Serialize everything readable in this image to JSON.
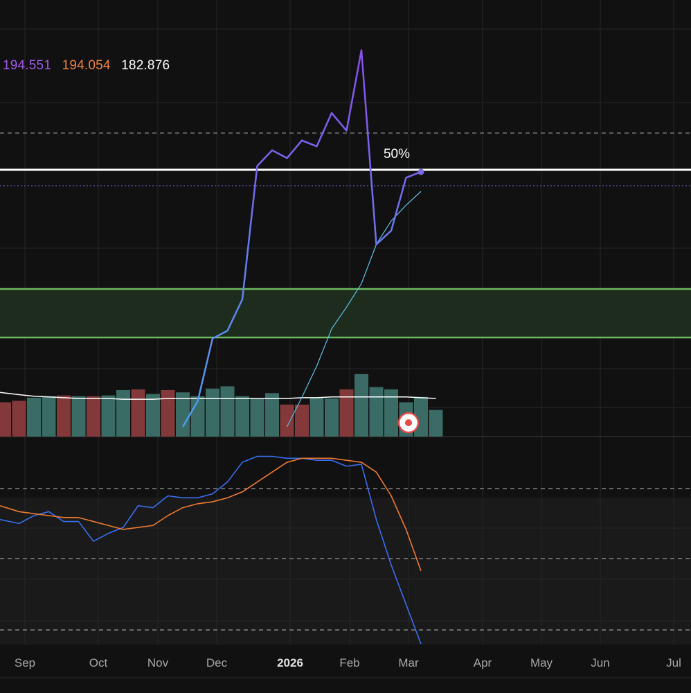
{
  "legend": {
    "values": [
      "194.551",
      "194.054",
      "182.876"
    ],
    "colors": [
      "#a35ae8",
      "#f0843c",
      "#ffffff"
    ]
  },
  "level_label": "50%",
  "x_axis": {
    "ticks": [
      "Sep",
      "Oct",
      "Nov",
      "Dec",
      "2026",
      "Feb",
      "Mar",
      "Apr",
      "May",
      "Jun",
      "Jul"
    ],
    "bold_tick": "2026"
  },
  "colors": {
    "background": "#111112",
    "lower_panel": "#1a1a1b",
    "grid": "#262628",
    "price_low": "#4aa0f0",
    "price_high": "#8b4ef0",
    "ma_line": "#5ec4e6",
    "volume_up": "#3a6b64",
    "volume_down": "#83393a",
    "volume_ma": "#ffffff",
    "zone_fill": "#1f2e1f",
    "zone_border": "#6dbb5e",
    "osc_fast": "#3a6ff0",
    "osc_slow": "#f07a30",
    "marker": "#e84a4a"
  },
  "chart_data": [
    {
      "type": "line",
      "panel": "price",
      "x_unit": "week index (0 = first week shown, late Aug 2025)",
      "series": [
        {
          "values": [
            null,
            null,
            null,
            null,
            null,
            null,
            null,
            null,
            null,
            null,
            null,
            null,
            0.05,
            0.18,
            0.5,
            0.54,
            0.7,
            1.38,
            1.46,
            1.42,
            1.51,
            1.48,
            1.65,
            1.56,
            1.97,
            0.98,
            1.05,
            1.32,
            1.35
          ]
        },
        {
          "values": [
            null,
            null,
            null,
            null,
            null,
            null,
            null,
            null,
            null,
            null,
            null,
            null,
            null,
            null,
            null,
            null,
            null,
            null,
            null,
            0.05,
            0.2,
            0.36,
            0.55,
            0.66,
            0.78,
            0.98,
            1.1,
            1.18,
            1.25
          ]
        }
      ]
    },
    {
      "type": "bar",
      "panel": "volume",
      "values": [
        0.45,
        0.47,
        0.51,
        0.53,
        0.54,
        0.53,
        0.53,
        0.54,
        0.61,
        0.62,
        0.56,
        0.61,
        0.58,
        0.53,
        0.63,
        0.66,
        0.53,
        0.5,
        0.57,
        0.42,
        0.42,
        0.51,
        0.5,
        0.62,
        0.82,
        0.65,
        0.62,
        0.45,
        0.52,
        0.35
      ],
      "direction": [
        "down",
        "down",
        "up",
        "up",
        "down",
        "up",
        "down",
        "up",
        "up",
        "down",
        "up",
        "down",
        "up",
        "up",
        "up",
        "up",
        "up",
        "up",
        "up",
        "down",
        "down",
        "up",
        "up",
        "down",
        "up",
        "up",
        "up",
        "up",
        "up",
        "up"
      ],
      "ma_values": [
        0.58,
        0.55,
        0.53,
        0.52,
        0.51,
        0.5,
        0.5,
        0.5,
        0.49,
        0.49,
        0.49,
        0.5,
        0.5,
        0.5,
        0.5,
        0.5,
        0.5,
        0.5,
        0.5,
        0.5,
        0.51,
        0.51,
        0.52,
        0.52,
        0.52,
        0.52,
        0.52,
        0.52,
        0.51,
        0.5
      ]
    },
    {
      "type": "line",
      "panel": "oscillator",
      "series": [
        {
          "values": [
            0.38,
            0.36,
            0.4,
            0.42,
            0.37,
            0.37,
            0.27,
            0.31,
            0.34,
            0.45,
            0.44,
            0.5,
            0.49,
            0.49,
            0.51,
            0.57,
            0.67,
            0.7,
            0.7,
            0.69,
            0.69,
            0.68,
            0.68,
            0.65,
            0.66,
            0.38,
            0.15,
            -0.05,
            -0.25
          ]
        },
        {
          "values": [
            0.45,
            0.42,
            0.41,
            0.4,
            0.39,
            0.39,
            0.37,
            0.35,
            0.33,
            0.34,
            0.35,
            0.4,
            0.44,
            0.46,
            0.47,
            0.49,
            0.52,
            0.57,
            0.62,
            0.67,
            0.69,
            0.69,
            0.69,
            0.68,
            0.67,
            0.62,
            0.5,
            0.33,
            0.12
          ]
        }
      ]
    }
  ]
}
